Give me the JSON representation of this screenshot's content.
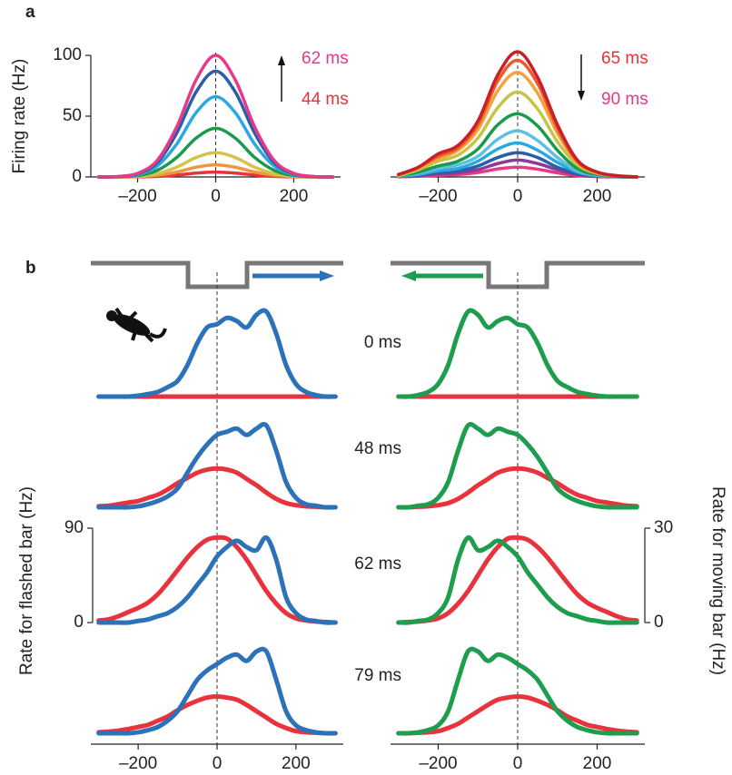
{
  "chart_data": [
    {
      "type": "line",
      "label": "a",
      "ylabel": "Firing rate (Hz)",
      "x": [
        -300,
        -250,
        -200,
        -150,
        -100,
        -50,
        0,
        50,
        100,
        150,
        200,
        250,
        300
      ],
      "xlim": [
        -320,
        320
      ],
      "xticks": [
        {
          "value": -200,
          "label": "–200"
        },
        0,
        200
      ],
      "ylim": [
        0,
        100
      ],
      "yticks": [
        0,
        50,
        100
      ],
      "annotations": [
        {
          "text": "62 ms",
          "color": "#e8388a"
        },
        {
          "text": "44 ms",
          "color": "#e8333a"
        }
      ],
      "series": [
        {
          "color": "#e8333a",
          "values": [
            0,
            0,
            0.1,
            0.5,
            1.6,
            3.2,
            4,
            3.2,
            1.6,
            0.5,
            0.1,
            0,
            0
          ]
        },
        {
          "color": "#f0953a",
          "values": [
            0,
            0,
            0.3,
            1.4,
            4,
            8,
            10,
            8,
            4,
            1.4,
            0.3,
            0,
            0
          ]
        },
        {
          "color": "#d4c24a",
          "values": [
            0,
            0.1,
            0.6,
            2.7,
            8,
            16,
            20,
            16,
            8,
            2.7,
            0.6,
            0.1,
            0
          ]
        },
        {
          "color": "#1a9a4a",
          "values": [
            0,
            0.2,
            1.2,
            5.4,
            16,
            32,
            40,
            32,
            16,
            5.4,
            1.2,
            0.2,
            0
          ]
        },
        {
          "color": "#29a9e0",
          "values": [
            0,
            0.3,
            2,
            9,
            27,
            53,
            66,
            53,
            27,
            9,
            2,
            0.3,
            0
          ]
        },
        {
          "color": "#2a5ea8",
          "values": [
            0,
            0.3,
            2.6,
            11.7,
            36,
            70,
            87,
            70,
            36,
            11.7,
            2.6,
            0.3,
            0
          ]
        },
        {
          "color": "#e8388a",
          "values": [
            0,
            0.4,
            3,
            13.5,
            41,
            80,
            100,
            80,
            41,
            13.5,
            3,
            0.4,
            0
          ]
        }
      ]
    },
    {
      "type": "line",
      "x": [
        -300,
        -250,
        -200,
        -150,
        -100,
        -50,
        0,
        50,
        100,
        150,
        200,
        250,
        300
      ],
      "xlim": [
        -320,
        320
      ],
      "xticks": [
        {
          "value": -200,
          "label": "–200"
        },
        0,
        200
      ],
      "ylim": [
        0,
        100
      ],
      "annotations": [
        {
          "text": "65 ms",
          "color": "#e8333a"
        },
        {
          "text": "90 ms",
          "color": "#e8388a"
        }
      ],
      "series": [
        {
          "color": "#e8388a",
          "values": [
            0.2,
            0.6,
            1.4,
            2,
            3.6,
            6.6,
            8,
            6.4,
            3.4,
            1.1,
            0.3,
            0.1,
            0
          ]
        },
        {
          "color": "#8a3a9a",
          "values": [
            0.3,
            1.1,
            2.5,
            3.5,
            6,
            11,
            14,
            11,
            6,
            2,
            0.6,
            0.1,
            0
          ]
        },
        {
          "color": "#2a5ea8",
          "values": [
            0.4,
            1.6,
            3.6,
            5,
            9,
            16,
            20,
            16,
            8,
            3,
            1,
            0.2,
            0
          ]
        },
        {
          "color": "#2aa8e0",
          "values": [
            0.6,
            2,
            5,
            7,
            13,
            23,
            28,
            22,
            12,
            4,
            1,
            0.3,
            0
          ]
        },
        {
          "color": "#5cc0e0",
          "values": [
            1,
            3,
            7,
            10,
            17,
            31,
            38,
            30,
            16,
            5,
            1.5,
            0.4,
            0
          ]
        },
        {
          "color": "#1a9a4a",
          "values": [
            1,
            4,
            9,
            13,
            23,
            43,
            52,
            42,
            22,
            7,
            2,
            0.5,
            0
          ]
        },
        {
          "color": "#c6c445",
          "values": [
            1,
            6,
            13,
            18,
            32,
            57,
            70,
            56,
            29,
            10,
            3,
            1,
            0
          ]
        },
        {
          "color": "#f5a23a",
          "values": [
            2,
            7,
            15,
            22,
            39,
            71,
            86,
            69,
            36,
            12,
            3,
            1,
            0
          ]
        },
        {
          "color": "#ee5a2a",
          "values": [
            2,
            8,
            17,
            24,
            43,
            79,
            96,
            77,
            40,
            13,
            4,
            1,
            0
          ]
        },
        {
          "color": "#c8202a",
          "values": [
            2,
            8,
            19,
            26,
            46,
            84,
            103,
            82,
            43,
            14,
            4,
            1,
            0
          ]
        }
      ]
    },
    {
      "type": "line",
      "label": "b",
      "ylabel": "Rate for flashed bar (Hz)",
      "x": [
        -300,
        -275,
        -250,
        -225,
        -200,
        -175,
        -150,
        -125,
        -100,
        -75,
        -50,
        -25,
        0,
        25,
        50,
        75,
        100,
        125,
        150,
        175,
        200,
        225,
        250,
        275,
        300
      ],
      "xlim": [
        -320,
        320
      ],
      "xticks": [
        {
          "value": -200,
          "label": "–200"
        },
        0,
        200
      ],
      "ylim": [
        0,
        90
      ],
      "yticks": [
        0,
        90
      ],
      "y2lim": [
        0,
        30
      ],
      "rows": [
        {
          "label": "0 ms",
          "series": [
            {
              "color": "#e8323c",
              "values": [
                0,
                0,
                0,
                0,
                0,
                0,
                0,
                0,
                0,
                0,
                0,
                0,
                0,
                0,
                0,
                0,
                0,
                0,
                0,
                0,
                0,
                0,
                0,
                0,
                0
              ]
            },
            {
              "color": "#2c72b8",
              "axis": "y2",
              "values": [
                0,
                0,
                0,
                0,
                0.3,
                0.8,
                1.5,
                3,
                5,
                10,
                17,
                22,
                23,
                25,
                24,
                22,
                26,
                27,
                20,
                10,
                4,
                1.5,
                0.5,
                0,
                0
              ]
            }
          ]
        },
        {
          "label": "48 ms",
          "series": [
            {
              "color": "#e8323c",
              "values": [
                1,
                1.5,
                3,
                4.5,
                6,
                9,
                12,
                17,
                23,
                28,
                33,
                36,
                37,
                36,
                33,
                27,
                21,
                14,
                8,
                4,
                2,
                1,
                0.5,
                0,
                0
              ]
            },
            {
              "color": "#2c72b8",
              "axis": "y2",
              "values": [
                0,
                0,
                0,
                0,
                0.3,
                1,
                2,
                3.5,
                6,
                11,
                16,
                20,
                23,
                24,
                25,
                23,
                25,
                26,
                18,
                8,
                3,
                1,
                0.5,
                0,
                0
              ]
            }
          ]
        },
        {
          "label": "62 ms",
          "series": [
            {
              "color": "#e8323c",
              "values": [
                2,
                3,
                6,
                10,
                14,
                19,
                27,
                38,
                50,
                62,
                72,
                79,
                81,
                80,
                72,
                60,
                45,
                30,
                18,
                9,
                4,
                2,
                1,
                0.5,
                0
              ]
            },
            {
              "color": "#2c72b8",
              "axis": "y2",
              "values": [
                0,
                0,
                0,
                0,
                0.5,
                1,
                2,
                3,
                5,
                8,
                12,
                16,
                21,
                24,
                26,
                24,
                23,
                27,
                20,
                8,
                3,
                1,
                0.5,
                0,
                0
              ]
            }
          ]
        },
        {
          "label": "79 ms",
          "series": [
            {
              "color": "#e8323c",
              "values": [
                1,
                1.5,
                2.5,
                4,
                6,
                8,
                12,
                16,
                22,
                27,
                31,
                34,
                35,
                34,
                32,
                27,
                21,
                15,
                9,
                5,
                2,
                1,
                0.5,
                0,
                0
              ]
            },
            {
              "color": "#2c72b8",
              "axis": "y2",
              "values": [
                0,
                0,
                0,
                0,
                0.3,
                1,
                2,
                4,
                7,
                12,
                17,
                20,
                22,
                24,
                25,
                23,
                26,
                26,
                17,
                7,
                2.5,
                1,
                0.3,
                0,
                0
              ]
            }
          ]
        }
      ]
    },
    {
      "type": "line",
      "y2label": "Rate for moving bar (Hz)",
      "x": [
        -300,
        -275,
        -250,
        -225,
        -200,
        -175,
        -150,
        -125,
        -100,
        -75,
        -50,
        -25,
        0,
        25,
        50,
        75,
        100,
        125,
        150,
        175,
        200,
        225,
        250,
        275,
        300
      ],
      "xlim": [
        -320,
        320
      ],
      "xticks": [
        {
          "value": -200,
          "label": "–200"
        },
        0,
        200
      ],
      "ylim": [
        0,
        90
      ],
      "y2lim": [
        0,
        30
      ],
      "y2ticks": [
        0,
        30
      ],
      "rows": [
        {
          "series": [
            {
              "color": "#e8323c",
              "values": [
                0,
                0,
                0,
                0,
                0,
                0,
                0,
                0,
                0,
                0,
                0,
                0,
                0,
                0,
                0,
                0,
                0,
                0,
                0,
                0,
                0,
                0,
                0,
                0,
                0
              ]
            },
            {
              "color": "#1f9d4f",
              "axis": "y2",
              "values": [
                0,
                0,
                0.5,
                1.5,
                4,
                10,
                20,
                27,
                26,
                22,
                24,
                25,
                23,
                22,
                17,
                10,
                5,
                3,
                1.5,
                0.8,
                0.3,
                0,
                0,
                0,
                0
              ]
            }
          ]
        },
        {
          "series": [
            {
              "color": "#e8323c",
              "values": [
                0,
                0,
                0.5,
                1,
                2,
                4,
                8,
                14,
                21,
                27,
                33,
                36,
                37,
                36,
                33,
                28,
                23,
                17,
                12,
                9,
                6,
                4.5,
                3,
                1.5,
                1
              ]
            },
            {
              "color": "#1f9d4f",
              "axis": "y2",
              "values": [
                0,
                0,
                0.5,
                1,
                3,
                8,
                18,
                26,
                25,
                23,
                25,
                24,
                23,
                20,
                16,
                11,
                6,
                3.5,
                2,
                1,
                0.3,
                0,
                0,
                0,
                0
              ]
            }
          ]
        },
        {
          "series": [
            {
              "color": "#e8323c",
              "values": [
                0,
                0.5,
                1,
                2,
                4,
                9,
                18,
                30,
                45,
                60,
                72,
                80,
                81,
                79,
                72,
                62,
                50,
                38,
                27,
                19,
                14,
                10,
                6,
                3,
                2
              ]
            },
            {
              "color": "#1f9d4f",
              "axis": "y2",
              "values": [
                0,
                0,
                0.5,
                1,
                3,
                8,
                20,
                27,
                23,
                24,
                26,
                24,
                21,
                16,
                12,
                8,
                5,
                3,
                2,
                1,
                0.5,
                0,
                0,
                0,
                0
              ]
            }
          ]
        },
        {
          "series": [
            {
              "color": "#e8323c",
              "values": [
                0,
                0,
                0.5,
                1,
                2,
                5,
                9,
                15,
                21,
                27,
                32,
                34,
                35,
                34,
                31,
                27,
                22,
                16,
                12,
                8,
                6,
                4,
                2.5,
                1.5,
                1
              ]
            },
            {
              "color": "#1f9d4f",
              "axis": "y2",
              "values": [
                0,
                0,
                0.3,
                1,
                2.5,
                7,
                17,
                26,
                26,
                23,
                25,
                24,
                22,
                20,
                17,
                12,
                7,
                4,
                2,
                1,
                0.3,
                0,
                0,
                0,
                0
              ]
            }
          ]
        }
      ]
    }
  ]
}
